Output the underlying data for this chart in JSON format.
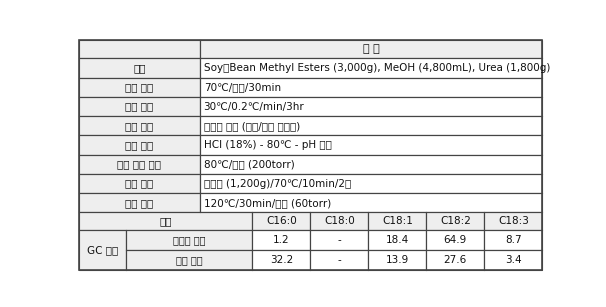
{
  "header_row": "조 건",
  "rows": [
    {
      "col1": "원료",
      "col2": "Soy・Bean Methyl Esters (3,000g), MeOH (4,800mL), Urea (1,800g)"
    },
    {
      "col1": "용해 공정",
      "col2": "70℃/상압/30min"
    },
    {
      "col1": "냉각 공정",
      "col2": "30℃/0.2℃/min/3hr"
    },
    {
      "col1": "여과 공정",
      "col2": "고형분 분리 (요소/포화 지방산)"
    },
    {
      "col1": "중화 공정",
      "col2": "HCl (18%) - 80℃ - pH 조절"
    },
    {
      "col1": "용제 회수 공정",
      "col2": "80℃/진공 (200torr)"
    },
    {
      "col1": "세정 공정",
      "col2": "공정수 (1,200g)/70℃/10min/2회"
    },
    {
      "col1": "탈수 공정",
      "col2": "120℃/30min/진공 (60torr)"
    }
  ],
  "result_row": {
    "col1": "결과",
    "cols": [
      "C16:0",
      "C18:0",
      "C18:1",
      "C18:2",
      "C18:3"
    ]
  },
  "gc_rows": [
    {
      "main": "GC 분석",
      "sub": "불포화 부분",
      "vals": [
        "1.2",
        "-",
        "18.4",
        "64.9",
        "8.7"
      ]
    },
    {
      "main": "",
      "sub": "포화 부분",
      "vals": [
        "32.2",
        "-",
        "13.9",
        "27.6",
        "3.4"
      ]
    }
  ],
  "border_color": "#444444",
  "text_color": "#111111",
  "font_size": 7.5,
  "label_bg": "#eeeeee",
  "data_bg": "#ffffff"
}
